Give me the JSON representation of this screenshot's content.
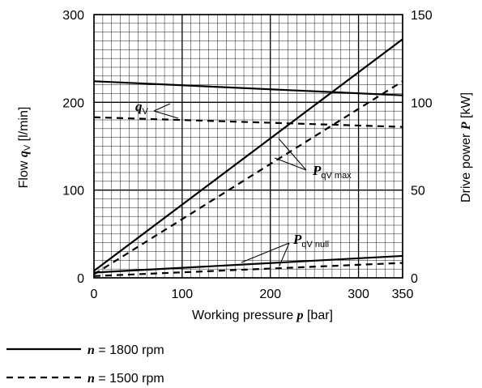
{
  "chart_data": {
    "type": "line",
    "xlabel": {
      "pre": "Working pressure ",
      "sym": "p",
      "post": " [bar]"
    },
    "ylabel_left": {
      "pre": "Flow ",
      "sym": "q",
      "sub": "V",
      "post": " [l/min]"
    },
    "ylabel_right": {
      "pre": "Drive power ",
      "sym": "P",
      "post": " [kW]"
    },
    "x_ticks": [
      0,
      100,
      200,
      300,
      350
    ],
    "y_left_ticks": [
      0,
      100,
      200,
      300
    ],
    "y_right_ticks": [
      0,
      50,
      100,
      150
    ],
    "xlim": [
      0,
      350
    ],
    "ylim_left": [
      0,
      300
    ],
    "ylim_right": [
      0,
      150
    ],
    "grid": true,
    "series": [
      {
        "axis": "left",
        "style": "solid",
        "x": [
          0,
          350
        ],
        "y": [
          224,
          208
        ]
      },
      {
        "axis": "left",
        "style": "dashed",
        "x": [
          0,
          350
        ],
        "y": [
          183,
          172
        ]
      },
      {
        "axis": "right",
        "style": "solid",
        "x": [
          0,
          350
        ],
        "y": [
          4,
          136
        ]
      },
      {
        "axis": "right",
        "style": "dashed",
        "x": [
          0,
          350
        ],
        "y": [
          2,
          112
        ]
      },
      {
        "axis": "right",
        "style": "solid",
        "x": [
          0,
          350
        ],
        "y": [
          3,
          12.5
        ]
      },
      {
        "axis": "right",
        "style": "dashed",
        "x": [
          0,
          350
        ],
        "y": [
          1,
          8.5
        ]
      }
    ],
    "annotations": [
      {
        "id": "qv",
        "sym": "q",
        "sub": "V"
      },
      {
        "id": "pmax",
        "sym": "P",
        "sub": "qV max"
      },
      {
        "id": "pnull",
        "sym": "P",
        "sub": "qV null"
      }
    ],
    "legend": [
      {
        "style": "solid",
        "sym": "n",
        "text": " = 1800 rpm"
      },
      {
        "style": "dashed",
        "sym": "n",
        "text": " = 1500 rpm"
      }
    ],
    "legend_placement": "bottom-left"
  }
}
